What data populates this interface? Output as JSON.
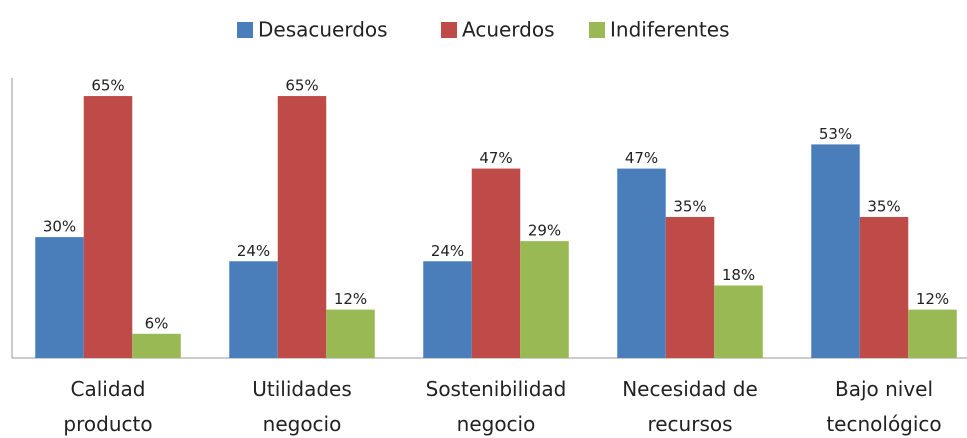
{
  "chart_data": {
    "type": "bar",
    "categories": [
      "Calidad\nproducto",
      "Utilidades\nnegocio",
      "Sostenibilidad\nnegocio",
      "Necesidad de\nrecursos",
      "Bajo nivel\ntecnológico"
    ],
    "series": [
      {
        "name": "Desacuerdos",
        "color": "#4a7ebb",
        "values": [
          30,
          24,
          24,
          47,
          53
        ],
        "value_labels": [
          "30%",
          "24%",
          "24%",
          "47%",
          "53%"
        ]
      },
      {
        "name": "Acuerdos",
        "color": "#be4b48",
        "values": [
          65,
          65,
          47,
          35,
          35
        ],
        "value_labels": [
          "65%",
          "65%",
          "47%",
          "35%",
          "35%"
        ]
      },
      {
        "name": "Indiferentes",
        "color": "#98b954",
        "values": [
          6,
          12,
          29,
          18,
          12
        ],
        "value_labels": [
          "6%",
          "12%",
          "29%",
          "18%",
          "12%"
        ]
      }
    ],
    "legend": "top"
  }
}
